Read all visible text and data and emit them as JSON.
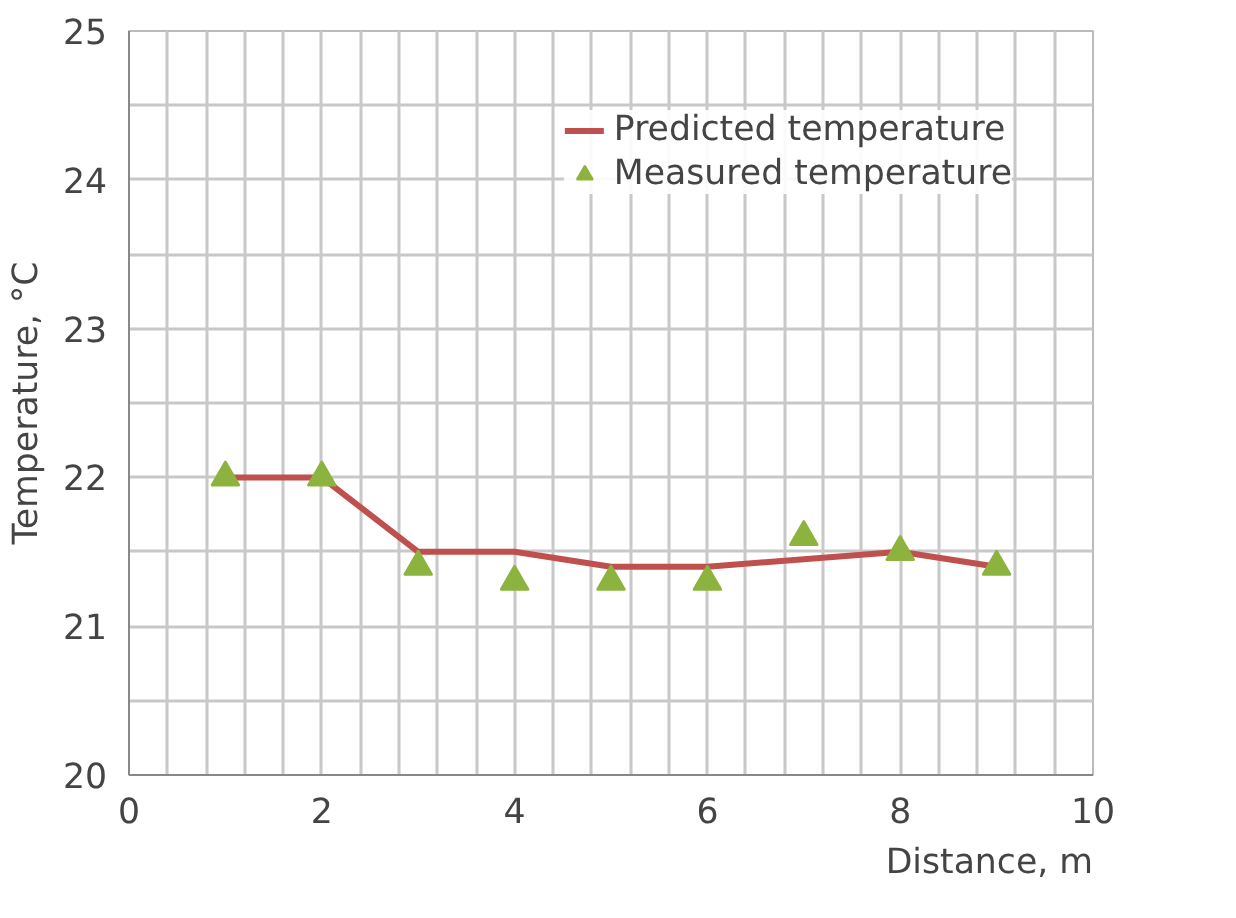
{
  "chart_data": {
    "type": "line",
    "xlabel": "Distance, m",
    "ylabel": "Temperature, °C",
    "x": [
      1,
      2,
      3,
      4,
      5,
      6,
      7,
      8,
      9
    ],
    "series": [
      {
        "name": "Predicted temperature",
        "color": "#c0504d",
        "marker": "none",
        "line_style": "solid",
        "values": [
          22,
          22,
          21.5,
          21.5,
          21.4,
          21.4,
          21.45,
          21.5,
          21.4
        ]
      },
      {
        "name": "Measured temperature",
        "color": "#8db33f",
        "type": "scatter",
        "marker": "triangle",
        "values": [
          22,
          22,
          21.4,
          21.3,
          21.3,
          21.3,
          21.6,
          21.5,
          21.4
        ]
      }
    ],
    "xlim": [
      0,
      10
    ],
    "ylim": [
      20,
      25
    ],
    "xticks": [
      0,
      {
        "value": 0.4,
        "label": null
      },
      {
        "value": 0.8,
        "label": null
      },
      {
        "value": 1.2,
        "label": null
      },
      {
        "value": 1.6,
        "label": null
      },
      2,
      {
        "value": 2.4,
        "label": null
      },
      {
        "value": 2.8,
        "label": null
      },
      {
        "value": 3.2,
        "label": null
      },
      {
        "value": 3.6,
        "label": null
      },
      4,
      {
        "value": 4.4,
        "label": null
      },
      {
        "value": 4.8,
        "label": null
      },
      {
        "value": 5.2,
        "label": null
      },
      {
        "value": 5.6,
        "label": null
      },
      6,
      {
        "value": 6.4,
        "label": null
      },
      {
        "value": 6.8,
        "label": null
      },
      {
        "value": 7.2,
        "label": null
      },
      {
        "value": 7.6,
        "label": null
      },
      8,
      {
        "value": 8.4,
        "label": null
      },
      {
        "value": 8.8,
        "label": null
      },
      {
        "value": 9.2,
        "label": null
      },
      {
        "value": 9.6,
        "label": null
      },
      10
    ],
    "yticks": [
      20,
      {
        "value": 20.5,
        "label": null
      },
      21,
      {
        "value": 21.5,
        "label": null
      },
      22,
      {
        "value": 22.5,
        "label": null
      },
      23,
      {
        "value": 23.5,
        "label": null
      },
      24,
      {
        "value": 24.5,
        "label": null
      },
      25
    ],
    "grid": true,
    "legend": "top right"
  }
}
